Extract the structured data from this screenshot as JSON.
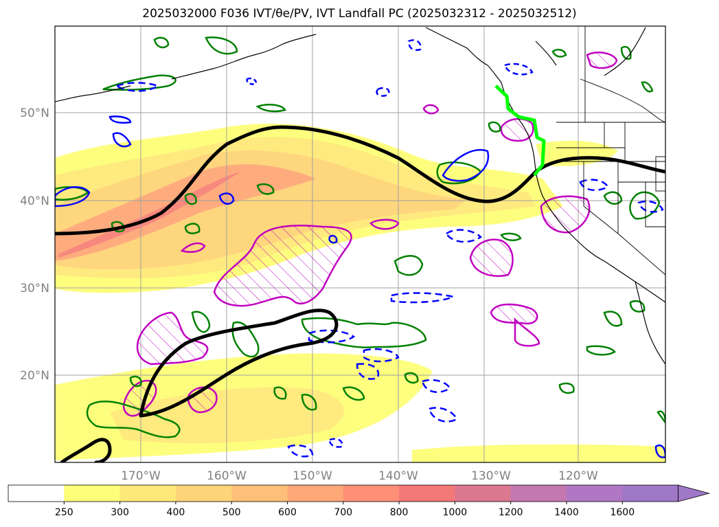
{
  "title": "2025032000 F036 IVT/θe/PV, IVT Landfall PC (2025032312 - 2025032512)",
  "lat_labels": [
    "50°N",
    "40°N",
    "30°N",
    "20°N"
  ],
  "lon_labels": [
    "170°W",
    "160°W",
    "150°W",
    "140°W",
    "130°W",
    "120°W"
  ],
  "colorbar": {
    "ticks": [
      "250",
      "300",
      "400",
      "500",
      "600",
      "700",
      "800",
      "1000",
      "1200",
      "1400",
      "1600"
    ],
    "colors": [
      "#ffffff",
      "#fefe78",
      "#fee978",
      "#fed478",
      "#fec078",
      "#fea878",
      "#fe9078",
      "#f47878",
      "#dc7890",
      "#c478b0",
      "#b078c4",
      "#a078c8"
    ],
    "extend": "max"
  },
  "colors": {
    "jet": "#000000",
    "pv_green": "#008000",
    "theta_blue": "#0000ff",
    "magenta": "#c000c0",
    "landfall": "#00ff00",
    "coast": "#000000"
  }
}
